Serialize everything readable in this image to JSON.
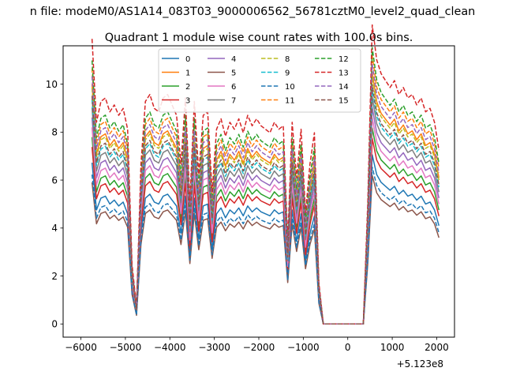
{
  "chart_data": {
    "type": "line",
    "suptitle": "n file: modeM0/AS1A14_083T03_9000006562_56781cztM0_level2_quad_clean",
    "title": "Quadrant 1 module wise count rates with 100.0s bins.",
    "xlabel": "",
    "ylabel": "",
    "offset_text": "+5.123e8",
    "xlim": [
      -6400,
      2400
    ],
    "ylim": [
      -0.55,
      11.6
    ],
    "xticks": [
      -6000,
      -5000,
      -4000,
      -3000,
      -2000,
      -1000,
      0,
      1000,
      2000
    ],
    "xtick_labels": [
      "−6000",
      "−5000",
      "−4000",
      "−3000",
      "−2000",
      "−1000",
      "0",
      "1000",
      "2000"
    ],
    "yticks": [
      0,
      2,
      4,
      6,
      8,
      10
    ],
    "ytick_labels": [
      "0",
      "2",
      "4",
      "6",
      "8",
      "10"
    ],
    "grid": false,
    "legend_placement": "top-center",
    "legend_columns": 4,
    "x": [
      -5750,
      -5650,
      -5550,
      -5450,
      -5350,
      -5250,
      -5150,
      -5050,
      -4950,
      -4850,
      -4750,
      -4650,
      -4550,
      -4450,
      -4350,
      -4250,
      -4150,
      -4050,
      -3950,
      -3850,
      -3750,
      -3650,
      -3550,
      -3450,
      -3350,
      -3250,
      -3150,
      -3050,
      -2950,
      -2850,
      -2750,
      -2650,
      -2550,
      -2450,
      -2350,
      -2250,
      -2150,
      -2050,
      -1950,
      -1850,
      -1750,
      -1650,
      -1550,
      -1450,
      -1350,
      -1250,
      -1150,
      -1050,
      -950,
      -850,
      -750,
      -650,
      -550,
      -450,
      -350,
      -250,
      -150,
      -50,
      50,
      150,
      250,
      350,
      450,
      550,
      650,
      750,
      850,
      950,
      1050,
      1150,
      1250,
      1350,
      1450,
      1550,
      1650,
      1750,
      1850,
      1950,
      2050
    ],
    "base": [
      8.2,
      5.8,
      6.4,
      6.5,
      6.1,
      6.3,
      6.0,
      6.2,
      5.6,
      1.7,
      0.5,
      4.6,
      6.4,
      6.6,
      6.2,
      6.1,
      6.5,
      6.6,
      6.3,
      6.0,
      4.6,
      6.5,
      3.5,
      6.4,
      4.3,
      6.0,
      6.1,
      3.8,
      5.6,
      5.9,
      5.4,
      5.8,
      5.6,
      5.9,
      5.5,
      6.0,
      5.7,
      5.9,
      5.7,
      5.6,
      5.5,
      5.8,
      5.6,
      5.7,
      2.4,
      5.8,
      4.2,
      5.6,
      3.2,
      4.6,
      5.5,
      1.2,
      0.0,
      0.0,
      0.0,
      0.0,
      0.0,
      0.0,
      0.0,
      0.0,
      0.0,
      0.0,
      3.5,
      8.6,
      7.6,
      7.2,
      7.0,
      6.8,
      7.0,
      6.6,
      6.8,
      6.5,
      6.6,
      6.3,
      6.5,
      6.1,
      6.2,
      5.8,
      5.0
    ],
    "series": [
      {
        "name": "0",
        "color": "#1f77b4",
        "dash": "solid",
        "scale": 0.82
      },
      {
        "name": "1",
        "color": "#ff7f0e",
        "dash": "solid",
        "scale": 1.22
      },
      {
        "name": "2",
        "color": "#2ca02c",
        "dash": "solid",
        "scale": 0.95
      },
      {
        "name": "3",
        "color": "#d62728",
        "dash": "solid",
        "scale": 0.9
      },
      {
        "name": "4",
        "color": "#9467bd",
        "dash": "solid",
        "scale": 1.05
      },
      {
        "name": "5",
        "color": "#8c564b",
        "dash": "solid",
        "scale": 0.72
      },
      {
        "name": "6",
        "color": "#e377c2",
        "dash": "solid",
        "scale": 1.0
      },
      {
        "name": "7",
        "color": "#7f7f7f",
        "dash": "solid",
        "scale": 1.1
      },
      {
        "name": "8",
        "color": "#bcbd22",
        "dash": "dashed",
        "scale": 1.2
      },
      {
        "name": "9",
        "color": "#17becf",
        "dash": "dashed",
        "scale": 1.14
      },
      {
        "name": "10",
        "color": "#1f77b4",
        "dash": "dashed",
        "scale": 0.76
      },
      {
        "name": "11",
        "color": "#ff7f0e",
        "dash": "dashed",
        "scale": 1.3
      },
      {
        "name": "12",
        "color": "#2ca02c",
        "dash": "dashed",
        "scale": 1.34
      },
      {
        "name": "13",
        "color": "#d62728",
        "dash": "dashed",
        "scale": 1.45
      },
      {
        "name": "14",
        "color": "#9467bd",
        "dash": "dashed",
        "scale": 1.26
      },
      {
        "name": "15",
        "color": "#8c564b",
        "dash": "dashed",
        "scale": 1.16
      }
    ]
  }
}
